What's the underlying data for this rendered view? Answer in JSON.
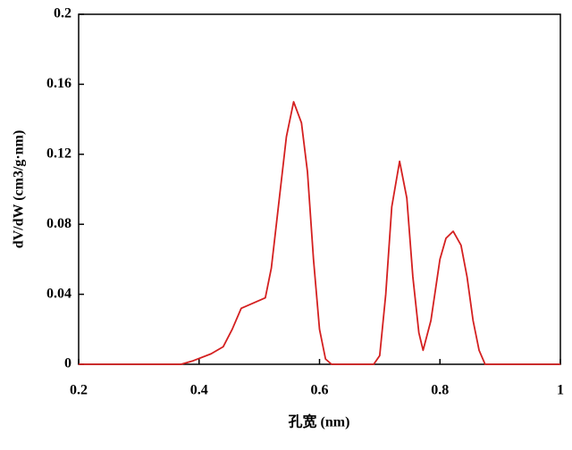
{
  "chart_data": {
    "type": "line",
    "x_label": "孔宽 (nm)",
    "y_label": "dV/dW (cm3/g·nm)",
    "x": [
      0.2,
      0.37,
      0.39,
      0.42,
      0.44,
      0.455,
      0.47,
      0.49,
      0.51,
      0.52,
      0.53,
      0.545,
      0.557,
      0.57,
      0.58,
      0.59,
      0.6,
      0.61,
      0.62,
      0.69,
      0.7,
      0.71,
      0.72,
      0.733,
      0.745,
      0.755,
      0.765,
      0.772,
      0.785,
      0.8,
      0.81,
      0.822,
      0.835,
      0.845,
      0.855,
      0.865,
      0.875,
      1.0
    ],
    "series": [
      {
        "name": "dV/dW",
        "color": "#d42020",
        "values": [
          0,
          0,
          0.002,
          0.006,
          0.01,
          0.02,
          0.032,
          0.035,
          0.038,
          0.055,
          0.085,
          0.13,
          0.15,
          0.138,
          0.11,
          0.06,
          0.02,
          0.003,
          0,
          0,
          0.005,
          0.04,
          0.09,
          0.116,
          0.095,
          0.05,
          0.018,
          0.008,
          0.025,
          0.06,
          0.072,
          0.076,
          0.068,
          0.05,
          0.025,
          0.008,
          0,
          0
        ]
      }
    ],
    "xlim": [
      0.2,
      1.0
    ],
    "xticks": [
      0.2,
      0.4,
      0.6,
      0.8,
      1
    ],
    "ylim": [
      0,
      0.2
    ],
    "yticks": [
      0,
      0.04,
      0.08,
      0.12,
      0.16,
      0.2
    ]
  }
}
